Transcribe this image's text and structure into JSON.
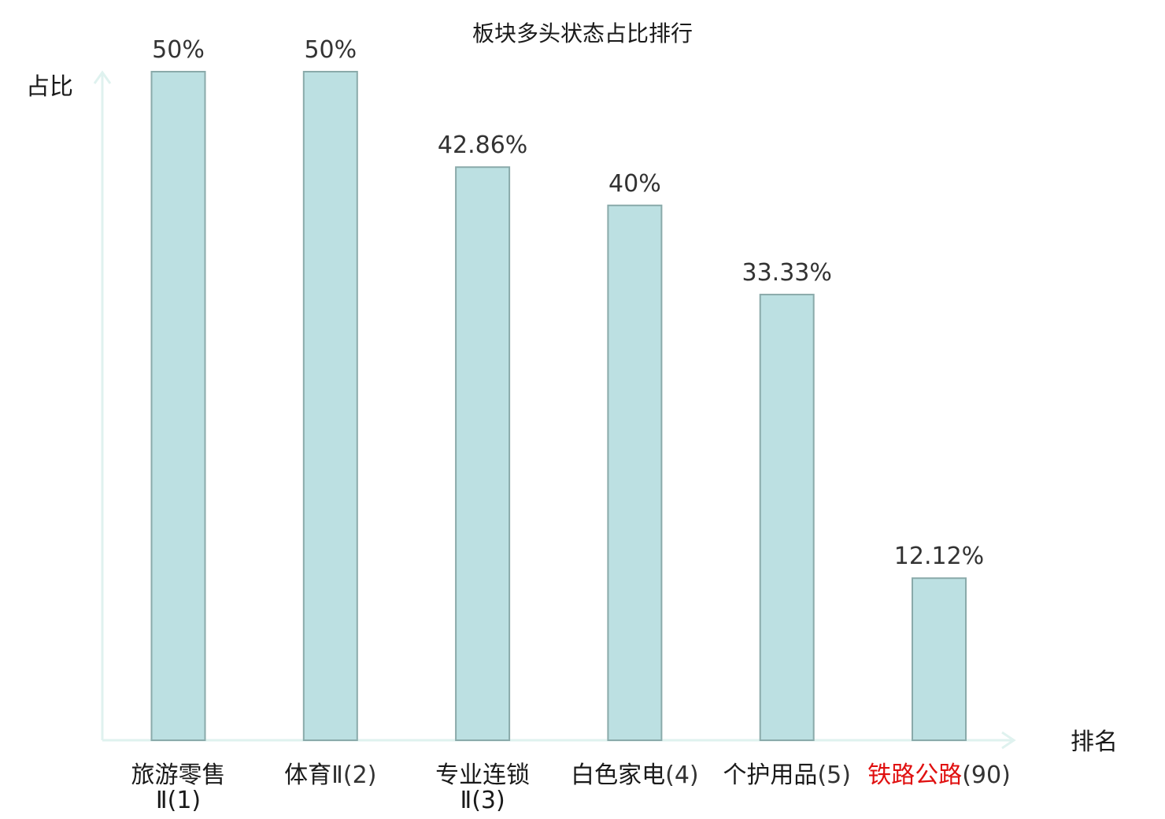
{
  "chart_data": {
    "type": "bar",
    "title": "板块多头状态占比排行",
    "ylabel": "占比",
    "xlabel": "排名",
    "ylim": [
      0,
      50
    ],
    "grid": false,
    "categories": [
      {
        "name": "旅游零售",
        "suffix": "Ⅱ(1)",
        "highlight": false
      },
      {
        "name": "体育",
        "suffix": "Ⅱ(2)",
        "highlight": false
      },
      {
        "name": "专业连锁",
        "suffix": "Ⅱ(3)",
        "highlight": false
      },
      {
        "name": "白色家电",
        "suffix": "(4)",
        "highlight": false
      },
      {
        "name": "个护用品",
        "suffix": "(5)",
        "highlight": false
      },
      {
        "name": "铁路公路",
        "suffix": "(90)",
        "highlight": true
      }
    ],
    "values": [
      50,
      50,
      42.86,
      40,
      33.33,
      12.12
    ],
    "value_labels": [
      "50%",
      "50%",
      "42.86%",
      "40%",
      "33.33%",
      "12.12%"
    ],
    "colors": {
      "bar_fill": "#bce0e2",
      "bar_stroke": "#8aaaaa",
      "axis": "#dff2ef",
      "highlight_text": "#e01010"
    }
  }
}
